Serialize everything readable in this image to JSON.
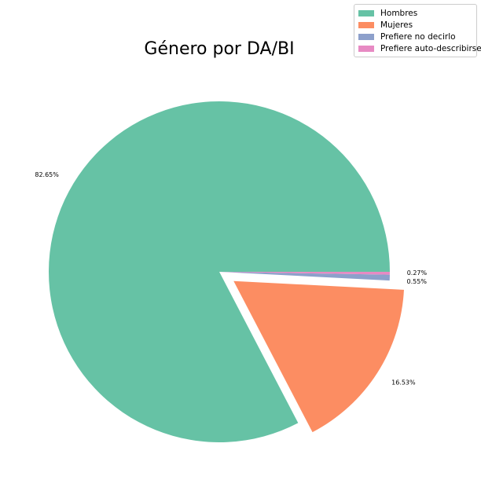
{
  "chart_data": {
    "type": "pie",
    "title": "Género por DA/BI",
    "categories": [
      "Hombres",
      "Mujeres",
      "Prefiere no decirlo",
      "Prefiere auto-describirse"
    ],
    "values": [
      82.65,
      16.53,
      0.55,
      0.27
    ],
    "labels": [
      "82.65%",
      "16.53%",
      "0.55%",
      "0.27%"
    ],
    "colors": [
      "#66c2a5",
      "#fc8d62",
      "#8da0cb",
      "#e78ac3"
    ],
    "exploded": [
      false,
      true,
      false,
      false
    ],
    "legend_position": "top-right",
    "start_angle_deg": 0,
    "direction": "counterclockwise"
  }
}
